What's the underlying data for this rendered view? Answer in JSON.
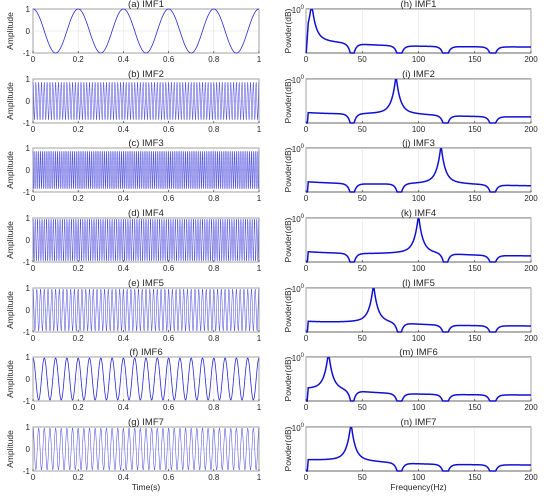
{
  "chart_data": [
    {
      "type": "line",
      "title": "(a) IMF1",
      "xlabel": "",
      "ylabel": "Amplitude",
      "xlim": [
        0,
        1
      ],
      "ylim": [
        -1,
        1
      ],
      "xticks": [
        "0",
        "0.2",
        "0.4",
        "0.6",
        "0.8",
        "1"
      ],
      "yticks": [
        "1",
        "0",
        "-1"
      ],
      "grid": true,
      "color": "#2a2ad8",
      "series": [
        {
          "kind": "sine",
          "amplitude": 1,
          "frequency_hz": 5
        }
      ]
    },
    {
      "type": "line",
      "title": "(b) IMF2",
      "xlabel": "",
      "ylabel": "Amplitude",
      "xlim": [
        0,
        1
      ],
      "ylim": [
        -1,
        1
      ],
      "xticks": [
        "0",
        "0.2",
        "0.4",
        "0.6",
        "0.8",
        "1"
      ],
      "yticks": [
        "1",
        "0",
        "-1"
      ],
      "grid": true,
      "color": "#2a2ad8",
      "series": [
        {
          "kind": "sine",
          "amplitude": 0.85,
          "frequency_hz": 80
        }
      ]
    },
    {
      "type": "line",
      "title": "(c) IMF3",
      "xlabel": "",
      "ylabel": "Amplitude",
      "xlim": [
        0,
        1
      ],
      "ylim": [
        -1,
        1
      ],
      "xticks": [
        "0",
        "0.2",
        "0.4",
        "0.6",
        "0.8",
        "1"
      ],
      "yticks": [
        "1",
        "0",
        "-1"
      ],
      "grid": true,
      "color": "#2a2ad8",
      "series": [
        {
          "kind": "sine",
          "amplitude": 0.85,
          "frequency_hz": 120
        }
      ]
    },
    {
      "type": "line",
      "title": "(d) IMF4",
      "xlabel": "",
      "ylabel": "Amplitude",
      "xlim": [
        0,
        1
      ],
      "ylim": [
        -1,
        1
      ],
      "xticks": [
        "0",
        "0.2",
        "0.4",
        "0.6",
        "0.8",
        "1"
      ],
      "yticks": [
        "1",
        "0",
        "-1"
      ],
      "grid": true,
      "color": "#2a2ad8",
      "series": [
        {
          "kind": "sine",
          "amplitude": 0.95,
          "frequency_hz": 100
        }
      ]
    },
    {
      "type": "line",
      "title": "(e) IMF5",
      "xlabel": "",
      "ylabel": "Amplitude",
      "xlim": [
        0,
        1
      ],
      "ylim": [
        -1,
        1
      ],
      "xticks": [
        "0",
        "0.2",
        "0.4",
        "0.6",
        "0.8",
        "1"
      ],
      "yticks": [
        "1",
        "0",
        "-1"
      ],
      "grid": true,
      "color": "#2a2ad8",
      "series": [
        {
          "kind": "sine",
          "amplitude": 0.95,
          "frequency_hz": 60
        }
      ]
    },
    {
      "type": "line",
      "title": "(f) IMF6",
      "xlabel": "",
      "ylabel": "Amplitude",
      "xlim": [
        0,
        1
      ],
      "ylim": [
        -1,
        1
      ],
      "xticks": [
        "0",
        "0.2",
        "0.4",
        "0.6",
        "0.8",
        "1"
      ],
      "yticks": [
        "1",
        "0",
        "-1"
      ],
      "grid": true,
      "color": "#2a2ad8",
      "series": [
        {
          "kind": "sine",
          "amplitude": 0.95,
          "frequency_hz": 20
        }
      ]
    },
    {
      "type": "line",
      "title": "(g) IMF7",
      "xlabel": "Time(s)",
      "ylabel": "Amplitude",
      "xlim": [
        0,
        1
      ],
      "ylim": [
        -1,
        1
      ],
      "xticks": [
        "0",
        "0.2",
        "0.4",
        "0.6",
        "0.8",
        "1"
      ],
      "yticks": [
        "1",
        "0",
        "-1"
      ],
      "grid": true,
      "color": "#2a2ad8",
      "series": [
        {
          "kind": "sine",
          "amplitude": 0.95,
          "frequency_hz": 40
        }
      ]
    },
    {
      "type": "line",
      "title": "(h) IMF1",
      "xlabel": "",
      "ylabel": "Powder(dB)",
      "xlim": [
        0,
        200
      ],
      "ylim": [
        0.001,
        1
      ],
      "log_y": true,
      "xticks": [
        "0",
        "50",
        "100",
        "150",
        "200"
      ],
      "ytick_label": "10^0",
      "grid": true,
      "color": "#1010d0",
      "series": [
        {
          "kind": "spectrum",
          "peak_hz": 5,
          "notch_hz": [
            41,
            83,
            124,
            166
          ]
        }
      ]
    },
    {
      "type": "line",
      "title": "(i) IMF2",
      "xlabel": "",
      "ylabel": "Powder(dB)",
      "xlim": [
        0,
        200
      ],
      "ylim": [
        0.001,
        1
      ],
      "log_y": true,
      "xticks": [
        "0",
        "50",
        "100",
        "150",
        "200"
      ],
      "ytick_label": "10^0",
      "grid": true,
      "color": "#1010d0",
      "series": [
        {
          "kind": "spectrum",
          "peak_hz": 80,
          "notch_hz": [
            41,
            124,
            166
          ]
        }
      ]
    },
    {
      "type": "line",
      "title": "(j) IMF3",
      "xlabel": "",
      "ylabel": "Powder(dB)",
      "xlim": [
        0,
        200
      ],
      "ylim": [
        0.001,
        1
      ],
      "log_y": true,
      "xticks": [
        "0",
        "50",
        "100",
        "150",
        "200"
      ],
      "ytick_label": "10^0",
      "grid": true,
      "color": "#1010d0",
      "series": [
        {
          "kind": "spectrum",
          "peak_hz": 120,
          "notch_hz": [
            41,
            83,
            166
          ]
        }
      ]
    },
    {
      "type": "line",
      "title": "(k) IMF4",
      "xlabel": "",
      "ylabel": "Powder(dB)",
      "xlim": [
        0,
        200
      ],
      "ylim": [
        0.001,
        1
      ],
      "log_y": true,
      "xticks": [
        "0",
        "50",
        "100",
        "150",
        "200"
      ],
      "ytick_label": "10^0",
      "grid": true,
      "color": "#1010d0",
      "series": [
        {
          "kind": "spectrum",
          "peak_hz": 100,
          "notch_hz": [
            41,
            124,
            166
          ]
        }
      ]
    },
    {
      "type": "line",
      "title": "(l) IMF5",
      "xlabel": "",
      "ylabel": "Powder(dB)",
      "xlim": [
        0,
        200
      ],
      "ylim": [
        0.001,
        1
      ],
      "log_y": true,
      "xticks": [
        "0",
        "50",
        "100",
        "150",
        "200"
      ],
      "ytick_label": "10^0",
      "grid": true,
      "color": "#1010d0",
      "series": [
        {
          "kind": "spectrum",
          "peak_hz": 60,
          "notch_hz": [
            83,
            124,
            166
          ]
        }
      ]
    },
    {
      "type": "line",
      "title": "(m) IMF6",
      "xlabel": "",
      "ylabel": "Powder(dB)",
      "xlim": [
        0,
        200
      ],
      "ylim": [
        0.001,
        1
      ],
      "log_y": true,
      "xticks": [
        "0",
        "50",
        "100",
        "150",
        "200"
      ],
      "ytick_label": "10^0",
      "grid": true,
      "color": "#1010d0",
      "series": [
        {
          "kind": "spectrum",
          "peak_hz": 20,
          "notch_hz": [
            41,
            83,
            124,
            166
          ]
        }
      ]
    },
    {
      "type": "line",
      "title": "(n) IMF7",
      "xlabel": "Frequency(Hz)",
      "ylabel": "Powder(dB)",
      "xlim": [
        0,
        200
      ],
      "ylim": [
        0.001,
        1
      ],
      "log_y": true,
      "xticks": [
        "0",
        "50",
        "100",
        "150",
        "200"
      ],
      "ytick_label": "10^0",
      "grid": true,
      "color": "#1010d0",
      "series": [
        {
          "kind": "spectrum",
          "peak_hz": 40,
          "notch_hz": [
            83,
            124,
            166
          ]
        }
      ]
    }
  ]
}
